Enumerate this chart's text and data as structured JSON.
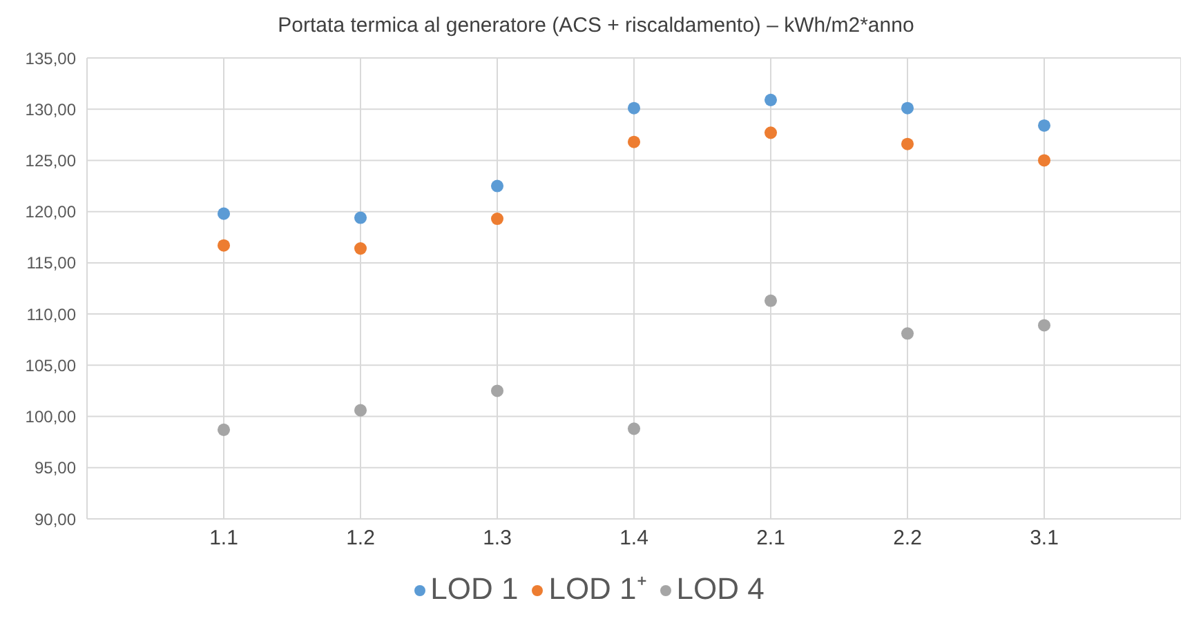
{
  "chart_data": {
    "type": "scatter",
    "title": "Portata termica al generatore (ACS + riscaldamento) – kWh/m2*anno",
    "categories": [
      "1.1",
      "1.2",
      "1.3",
      "1.4",
      "2.1",
      "2.2",
      "3.1"
    ],
    "series": [
      {
        "name": "LOD 1",
        "color": "#5b9bd5",
        "values": [
          119.8,
          119.4,
          122.5,
          130.1,
          130.9,
          130.1,
          128.4
        ]
      },
      {
        "name": "LOD 1⁺",
        "color": "#ed7d31",
        "values": [
          116.7,
          116.4,
          119.3,
          126.8,
          127.7,
          126.6,
          125.0
        ]
      },
      {
        "name": "LOD 4",
        "color": "#a5a5a5",
        "values": [
          98.7,
          100.6,
          102.5,
          98.8,
          111.3,
          108.1,
          108.9
        ]
      }
    ],
    "ylim": [
      90,
      135
    ],
    "yticks": [
      {
        "value": 90,
        "label": "90,00"
      },
      {
        "value": 95,
        "label": "95,00"
      },
      {
        "value": 100,
        "label": "100,00"
      },
      {
        "value": 105,
        "label": "105,00"
      },
      {
        "value": 110,
        "label": "110,00"
      },
      {
        "value": 115,
        "label": "115,00"
      },
      {
        "value": 120,
        "label": "120,00"
      },
      {
        "value": 125,
        "label": "125,00"
      },
      {
        "value": 130,
        "label": "130,00"
      },
      {
        "value": 135,
        "label": "135,00"
      }
    ],
    "grid": true,
    "legend": "bottom",
    "marker": "circle"
  }
}
